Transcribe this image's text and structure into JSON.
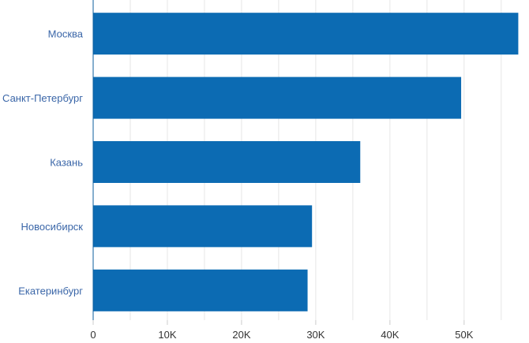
{
  "chart_data": {
    "type": "bar",
    "orientation": "horizontal",
    "categories": [
      "Москва",
      "Санкт-Петербург",
      "Казань",
      "Новосибирск",
      "Екатеринбург"
    ],
    "values": [
      57300,
      49600,
      36000,
      29500,
      28900
    ],
    "xlim": [
      0,
      58000
    ],
    "x_ticks": [
      0,
      10000,
      20000,
      30000,
      40000,
      50000
    ],
    "x_tick_labels": [
      "0",
      "10K",
      "20K",
      "30K",
      "40K",
      "50K"
    ],
    "grid": true,
    "bar_color": "#0c6bb3",
    "axis_color": "#0b5e9e"
  }
}
